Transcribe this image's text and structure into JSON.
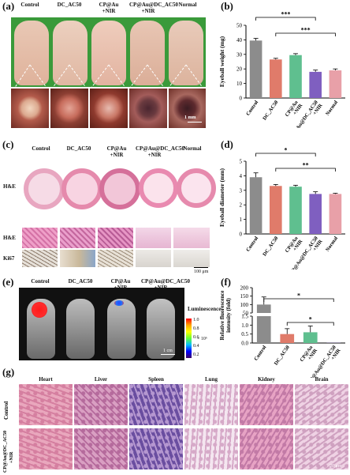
{
  "panels": {
    "a": {
      "label": "(a)",
      "groups": [
        "Control",
        "DC_AC50",
        "CP@Au\n+NIR",
        "CP@Au@DC_AC50\n+NIR",
        "Normal"
      ],
      "scale": "1 mm"
    },
    "b": {
      "label": "(b)"
    },
    "c": {
      "label": "(c)",
      "groups": [
        "Control",
        "DC_AC50",
        "CP@Au\n+NIR",
        "CP@Au@DC_AC50\n+NIR",
        "Normal"
      ],
      "row_labels": [
        "H&E",
        "H&E",
        "Ki67"
      ],
      "scale": "100 μm"
    },
    "d": {
      "label": "(d)"
    },
    "e": {
      "label": "(e)",
      "groups": [
        "Control",
        "DC_AC50",
        "CP@Au\n+NIR",
        "CP@Au@DC_AC50\n+NIR"
      ],
      "colorbar_title": "Luminescence",
      "colorbar_ticks": [
        "1.0",
        "0.8",
        "0.6",
        "0.4",
        "0.2"
      ],
      "colorbar_unit": "× 10⁶",
      "scale": "1 cm"
    },
    "f": {
      "label": "(f)"
    },
    "g": {
      "label": "(g)",
      "organs": [
        "Heart",
        "Liver",
        "Spleen",
        "Lung",
        "Kidney",
        "Brain"
      ],
      "row_labels": [
        "Control",
        "CP@Au@DC_AC50\n+NIR"
      ],
      "scale": "20 μm"
    }
  },
  "chart_data": [
    {
      "id": "b",
      "type": "bar",
      "categories": [
        "Control",
        "DC_AC50",
        "CP@Au\n+NIR",
        "CP@Au@DC_AC50\n+NIR",
        "Normal"
      ],
      "values": [
        39.5,
        26.5,
        29.5,
        18,
        19
      ],
      "errors": [
        1.5,
        0.8,
        1.0,
        1.2,
        1.0
      ],
      "colors": [
        "#8c8c8c",
        "#e07b6a",
        "#5fbf8f",
        "#7f5fc0",
        "#e8a0a8"
      ],
      "ylabel": "Eyeball weight (mg)",
      "ylim": [
        0,
        50
      ],
      "yticks": [
        0,
        10,
        20,
        30,
        40,
        50
      ],
      "significance": [
        "***",
        "***"
      ]
    },
    {
      "id": "d",
      "type": "bar",
      "categories": [
        "Control",
        "DC_AC50",
        "CP@Au\n+NIR",
        "CP@Au@DC_AC50\n+NIR",
        "Normal"
      ],
      "values": [
        3.9,
        3.3,
        3.25,
        2.75,
        2.75
      ],
      "errors": [
        0.3,
        0.1,
        0.1,
        0.15,
        0.05
      ],
      "colors": [
        "#8c8c8c",
        "#e07b6a",
        "#5fbf8f",
        "#7f5fc0",
        "#e8a0a8"
      ],
      "ylabel": "Eyeball diameter (mm)",
      "ylim": [
        0,
        5
      ],
      "yticks": [
        0,
        1,
        2,
        3,
        4,
        5
      ],
      "significance": [
        "*",
        "**"
      ]
    },
    {
      "id": "f",
      "type": "bar",
      "categories": [
        "Control",
        "DC_AC50",
        "CP@Au\n+NIR",
        "CP@Au@DC_AC50\n+NIR"
      ],
      "values": [
        100,
        0.5,
        0.6,
        0.01
      ],
      "errors": [
        45,
        0.3,
        0.35,
        0
      ],
      "colors": [
        "#8c8c8c",
        "#e07b6a",
        "#5fbf8f",
        "#7f5fc0"
      ],
      "ylabel": "Relative fluorescence\nintensity (fold)",
      "yticks_upper": [
        "50",
        "100",
        "150",
        "200"
      ],
      "yticks_lower": [
        "0.0",
        "0.5",
        "1.0",
        "1.5"
      ],
      "significance": [
        "*",
        "*"
      ]
    }
  ]
}
